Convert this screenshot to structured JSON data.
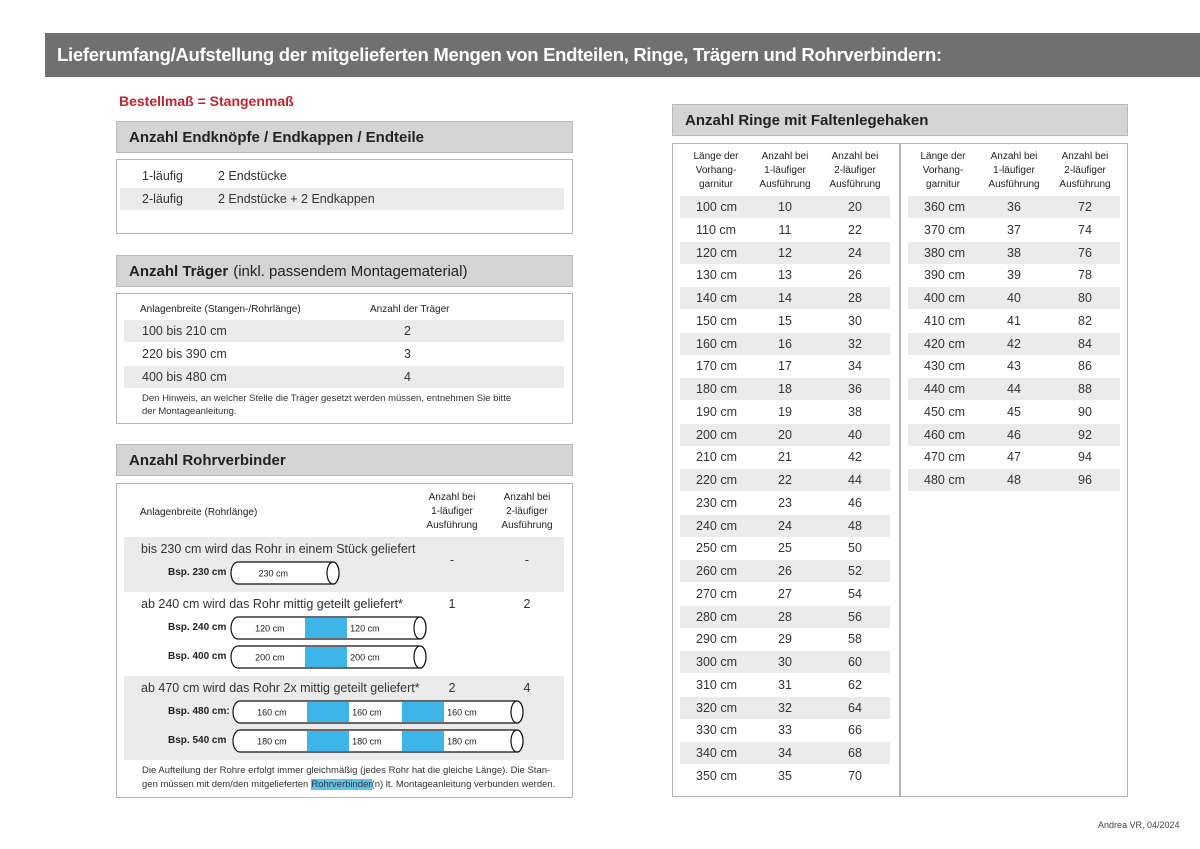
{
  "header": {
    "title": "Lieferumfang/Aufstellung der mitgelieferten Mengen von Endteilen, Ringe, Trägern und Rohrverbindern:"
  },
  "order_note": "Bestellmaß = Stangenmaß",
  "endteile": {
    "title": "Anzahl Endknöpfe / Endkappen / Endteile",
    "rows": [
      [
        "1-läufig",
        "2 Endstücke"
      ],
      [
        "2-läufig",
        "2 Endstücke + 2 Endkappen"
      ]
    ]
  },
  "traeger": {
    "title": "Anzahl Träger",
    "title_suffix": "(inkl. passendem Montagematerial)",
    "columns": [
      "Anlagenbreite (Stangen-/Rohrlänge)",
      "Anzahl der Träger"
    ],
    "rows": [
      [
        "100 bis 210 cm",
        2
      ],
      [
        "220 bis 390 cm",
        3
      ],
      [
        "400 bis 480 cm",
        4
      ]
    ],
    "note": "Den Hinweis, an welcher Stelle die Träger gesetzt werden müssen, entnehmen Sie bitte der Montageanleitung."
  },
  "rohrverbinder": {
    "title": "Anzahl Rohrverbinder",
    "columns": [
      [
        "Anlagenbreite (Rohrlänge)"
      ],
      [
        "Anzahl bei",
        "1-läufiger",
        "Ausführung"
      ],
      [
        "Anzahl bei",
        "2-läufiger",
        "Ausführung"
      ]
    ],
    "groups": [
      {
        "text": "bis 230 cm wird das Rohr in einem Stück geliefert",
        "one": "-",
        "two": "-",
        "examples": [
          {
            "label": "Bsp. 230 cm",
            "segments": [
              "230 cm"
            ]
          }
        ]
      },
      {
        "text": "ab 240 cm wird das Rohr mittig geteilt geliefert*",
        "one": 1,
        "two": 2,
        "examples": [
          {
            "label": "Bsp. 240 cm",
            "segments": [
              "120 cm",
              "120 cm"
            ]
          },
          {
            "label": "Bsp. 400 cm",
            "segments": [
              "200 cm",
              "200 cm"
            ]
          }
        ]
      },
      {
        "text": "ab 470 cm wird das Rohr 2x mittig geteilt geliefert*",
        "one": 2,
        "two": 4,
        "examples": [
          {
            "label": "Bsp. 480 cm:",
            "segments": [
              "160 cm",
              "160 cm",
              "160 cm"
            ]
          },
          {
            "label": "Bsp. 540 cm",
            "segments": [
              "180 cm",
              "180 cm",
              "180 cm"
            ]
          }
        ]
      }
    ],
    "note": [
      "Die Aufteilung der Rohre erfolgt immer gleichmäßig (jedes Rohr hat die gleiche Länge). Die Stan-",
      "gen müssen mit dem/den mitgelieferten",
      "Rohrverbinder",
      "(n) lt. Montageanleitung verbunden werden."
    ]
  },
  "ringe": {
    "title": "Anzahl Ringe mit Faltenlegehaken",
    "left": {
      "columns": [
        [
          "Länge der",
          "Vorhang-",
          "garnitur"
        ],
        [
          "Anzahl bei",
          "1-läufiger",
          "Ausführung"
        ],
        [
          "Anzahl bei",
          "2-läufiger",
          "Ausführung"
        ]
      ],
      "rows": [
        [
          "100 cm",
          10,
          20
        ],
        [
          "110 cm",
          11,
          22
        ],
        [
          "120 cm",
          12,
          24
        ],
        [
          "130 cm",
          13,
          26
        ],
        [
          "140 cm",
          14,
          28
        ],
        [
          "150 cm",
          15,
          30
        ],
        [
          "160 cm",
          16,
          32
        ],
        [
          "170 cm",
          17,
          34
        ],
        [
          "180 cm",
          18,
          36
        ],
        [
          "190 cm",
          19,
          38
        ],
        [
          "200 cm",
          20,
          40
        ],
        [
          "210 cm",
          21,
          42
        ],
        [
          "220 cm",
          22,
          44
        ],
        [
          "230 cm",
          23,
          46
        ],
        [
          "240 cm",
          24,
          48
        ],
        [
          "250 cm",
          25,
          50
        ],
        [
          "260 cm",
          26,
          52
        ],
        [
          "270 cm",
          27,
          54
        ],
        [
          "280 cm",
          28,
          56
        ],
        [
          "290 cm",
          29,
          58
        ],
        [
          "300 cm",
          30,
          60
        ],
        [
          "310 cm",
          31,
          62
        ],
        [
          "320 cm",
          32,
          64
        ],
        [
          "330 cm",
          33,
          66
        ],
        [
          "340 cm",
          34,
          68
        ],
        [
          "350 cm",
          35,
          70
        ]
      ]
    },
    "right": {
      "columns": [
        [
          "Länge der",
          "Vorhang-",
          "garnitur"
        ],
        [
          "Anzahl bei",
          "1-läufiger",
          "Ausführung"
        ],
        [
          "Anzahl bei",
          "2-läufiger",
          "Ausführung"
        ]
      ],
      "rows": [
        [
          "360 cm",
          36,
          72
        ],
        [
          "370 cm",
          37,
          74
        ],
        [
          "380 cm",
          38,
          76
        ],
        [
          "390 cm",
          39,
          78
        ],
        [
          "400 cm",
          40,
          80
        ],
        [
          "410 cm",
          41,
          82
        ],
        [
          "420 cm",
          42,
          84
        ],
        [
          "430 cm",
          43,
          86
        ],
        [
          "440 cm",
          44,
          88
        ],
        [
          "450 cm",
          45,
          90
        ],
        [
          "460 cm",
          46,
          92
        ],
        [
          "470 cm",
          47,
          94
        ],
        [
          "480 cm",
          48,
          96
        ]
      ]
    }
  },
  "footer": "Andrea VR, 04/2024"
}
